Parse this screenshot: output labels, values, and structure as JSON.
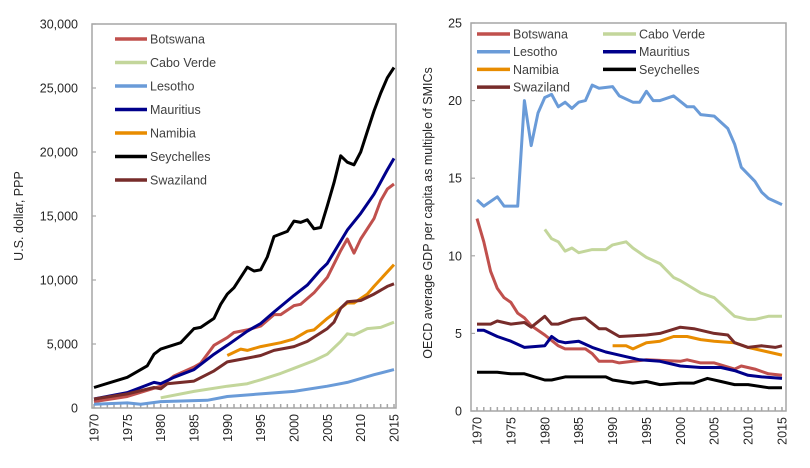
{
  "chart_data": [
    {
      "type": "line",
      "title": "",
      "xlabel": "",
      "ylabel": "U.S. dollar, PPP",
      "xlim": [
        1970,
        2015
      ],
      "ylim": [
        0,
        30000
      ],
      "yticks": [
        0,
        5000,
        10000,
        15000,
        20000,
        25000,
        30000
      ],
      "ytick_labels": [
        "0",
        "5,000",
        "10,000",
        "15,000",
        "20,000",
        "25,000",
        "30,000"
      ],
      "xticks": [
        1970,
        1975,
        1980,
        1985,
        1990,
        1995,
        2000,
        2005,
        2010,
        2015
      ],
      "xtick_labels": [
        "1970",
        "1975",
        "1980",
        "1985",
        "1990",
        "1995",
        "2000",
        "2005",
        "2010",
        "2015"
      ],
      "grid": false,
      "legend": "top-left",
      "series": [
        {
          "name": "Botswana",
          "color": "#c0504d",
          "x": [
            1970,
            1975,
            1980,
            1982,
            1985,
            1986,
            1988,
            1990,
            1991,
            1993,
            1995,
            1997,
            1998,
            2000,
            2001,
            2003,
            2005,
            2007,
            2008,
            2009,
            2010,
            2012,
            2013,
            2014,
            2015
          ],
          "y": [
            500,
            900,
            1700,
            2500,
            3200,
            3500,
            4900,
            5500,
            5900,
            6100,
            6400,
            7300,
            7300,
            8000,
            8100,
            9000,
            10200,
            12300,
            13200,
            12100,
            13200,
            14800,
            16200,
            17100,
            17500
          ]
        },
        {
          "name": "Cabo Verde",
          "color": "#c3d69b",
          "x": [
            1980,
            1985,
            1990,
            1993,
            1995,
            1998,
            2000,
            2003,
            2005,
            2007,
            2008,
            2009,
            2011,
            2013,
            2015
          ],
          "y": [
            800,
            1300,
            1700,
            1900,
            2200,
            2700,
            3100,
            3700,
            4200,
            5200,
            5800,
            5700,
            6200,
            6300,
            6700
          ]
        },
        {
          "name": "Lesotho",
          "color": "#6a9bd8",
          "x": [
            1970,
            1975,
            1977,
            1980,
            1987,
            1990,
            1995,
            2000,
            2005,
            2008,
            2010,
            2012,
            2015
          ],
          "y": [
            300,
            400,
            300,
            500,
            600,
            900,
            1100,
            1300,
            1700,
            2000,
            2300,
            2600,
            3000
          ]
        },
        {
          "name": "Mauritius",
          "color": "#00008b",
          "x": [
            1970,
            1975,
            1979,
            1980,
            1982,
            1985,
            1988,
            1990,
            1993,
            1995,
            1997,
            2000,
            2002,
            2004,
            2005,
            2008,
            2010,
            2012,
            2014,
            2015
          ],
          "y": [
            700,
            1200,
            2000,
            1900,
            2400,
            3000,
            4200,
            4900,
            6000,
            6600,
            7500,
            8800,
            9600,
            10800,
            11300,
            13900,
            15200,
            16700,
            18600,
            19500
          ]
        },
        {
          "name": "Namibia",
          "color": "#e88c00",
          "x": [
            1990,
            1992,
            1993,
            1995,
            1998,
            2000,
            2002,
            2003,
            2005,
            2007,
            2008,
            2009,
            2011,
            2012,
            2015
          ],
          "y": [
            4100,
            4600,
            4500,
            4800,
            5100,
            5400,
            6000,
            6100,
            7000,
            7800,
            8200,
            8200,
            8900,
            9500,
            11200
          ]
        },
        {
          "name": "Seychelles",
          "color": "#000000",
          "x": [
            1970,
            1975,
            1978,
            1979,
            1980,
            1983,
            1985,
            1986,
            1988,
            1989,
            1990,
            1991,
            1993,
            1994,
            1995,
            1996,
            1997,
            1999,
            2000,
            2001,
            2002,
            2003,
            2004,
            2005,
            2006,
            2007,
            2008,
            2009,
            2010,
            2011,
            2012,
            2013,
            2014,
            2015
          ],
          "y": [
            1600,
            2400,
            3300,
            4200,
            4600,
            5100,
            6200,
            6300,
            7000,
            8100,
            8900,
            9400,
            11000,
            10700,
            10800,
            11800,
            13400,
            13800,
            14600,
            14500,
            14700,
            14000,
            14100,
            15800,
            17600,
            19700,
            19200,
            19000,
            20000,
            21600,
            23200,
            24600,
            25800,
            26600
          ]
        },
        {
          "name": "Swaziland",
          "color": "#772c2a",
          "x": [
            1970,
            1975,
            1979,
            1980,
            1981,
            1985,
            1988,
            1990,
            1993,
            1995,
            1997,
            2000,
            2002,
            2005,
            2006,
            2007,
            2008,
            2010,
            2012,
            2014,
            2015
          ],
          "y": [
            700,
            1100,
            1600,
            1500,
            1900,
            2100,
            2900,
            3600,
            3900,
            4100,
            4500,
            4800,
            5200,
            6200,
            6700,
            7800,
            8300,
            8400,
            8900,
            9500,
            9700
          ]
        }
      ]
    },
    {
      "type": "line",
      "title": "",
      "xlabel": "",
      "ylabel": "OECD average GDP per capita as multiple of SMICs",
      "xlim": [
        1970,
        2015
      ],
      "ylim": [
        0,
        25
      ],
      "yticks": [
        0,
        5,
        10,
        15,
        20,
        25
      ],
      "ytick_labels": [
        "0",
        "5",
        "10",
        "15",
        "20",
        "25"
      ],
      "xticks": [
        1970,
        1975,
        1980,
        1985,
        1990,
        1995,
        2000,
        2005,
        2010,
        2015
      ],
      "xtick_labels": [
        "1970",
        "1975",
        "1980",
        "1985",
        "1990",
        "1995",
        "2000",
        "2005",
        "2010",
        "2015"
      ],
      "grid": false,
      "legend": "top",
      "series": [
        {
          "name": "Botswana",
          "color": "#c0504d",
          "x": [
            1970,
            1971,
            1972,
            1973,
            1974,
            1975,
            1976,
            1977,
            1978,
            1980,
            1982,
            1983,
            1986,
            1987,
            1988,
            1990,
            1991,
            1993,
            1995,
            2000,
            2001,
            2003,
            2005,
            2008,
            2009,
            2011,
            2013,
            2015
          ],
          "y": [
            12.4,
            10.9,
            9.0,
            7.9,
            7.3,
            7.0,
            6.3,
            6.0,
            5.5,
            4.9,
            4.2,
            4.0,
            4.0,
            3.7,
            3.2,
            3.2,
            3.1,
            3.2,
            3.3,
            3.2,
            3.3,
            3.1,
            3.1,
            2.7,
            2.9,
            2.7,
            2.4,
            2.3
          ]
        },
        {
          "name": "Cabo Verde",
          "color": "#c3d69b",
          "x": [
            1980,
            1981,
            1982,
            1983,
            1984,
            1985,
            1987,
            1989,
            1990,
            1992,
            1993,
            1995,
            1997,
            1999,
            2000,
            2003,
            2005,
            2007,
            2008,
            2010,
            2011,
            2013,
            2015
          ],
          "y": [
            11.7,
            11.1,
            10.9,
            10.3,
            10.5,
            10.2,
            10.4,
            10.4,
            10.7,
            10.9,
            10.5,
            9.9,
            9.5,
            8.6,
            8.4,
            7.6,
            7.3,
            6.5,
            6.1,
            5.9,
            5.9,
            6.1,
            6.1
          ]
        },
        {
          "name": "Lesotho",
          "color": "#6a9bd8",
          "x": [
            1970,
            1971,
            1973,
            1974,
            1976,
            1977,
            1978,
            1979,
            1980,
            1981,
            1982,
            1983,
            1984,
            1985,
            1986,
            1987,
            1988,
            1990,
            1991,
            1993,
            1994,
            1995,
            1996,
            1997,
            1999,
            2001,
            2002,
            2003,
            2005,
            2007,
            2008,
            2009,
            2011,
            2012,
            2013,
            2015
          ],
          "y": [
            13.6,
            13.2,
            13.8,
            13.2,
            13.2,
            20.0,
            17.1,
            19.2,
            20.2,
            20.4,
            19.6,
            19.9,
            19.5,
            19.9,
            20.0,
            21.0,
            20.8,
            20.9,
            20.3,
            19.9,
            19.9,
            20.6,
            20.0,
            20.0,
            20.3,
            19.6,
            19.6,
            19.1,
            19.0,
            18.2,
            17.2,
            15.7,
            14.8,
            14.1,
            13.7,
            13.3
          ]
        },
        {
          "name": "Mauritius",
          "color": "#00008b",
          "x": [
            1970,
            1971,
            1973,
            1975,
            1977,
            1980,
            1981,
            1982,
            1983,
            1985,
            1987,
            1989,
            1990,
            1992,
            1994,
            1997,
            2000,
            2003,
            2006,
            2008,
            2010,
            2012,
            2015
          ],
          "y": [
            5.2,
            5.2,
            4.8,
            4.5,
            4.1,
            4.2,
            4.8,
            4.5,
            4.4,
            4.5,
            4.1,
            3.8,
            3.7,
            3.5,
            3.3,
            3.2,
            2.9,
            2.8,
            2.8,
            2.6,
            2.3,
            2.2,
            2.1
          ]
        },
        {
          "name": "Namibia",
          "color": "#e88c00",
          "x": [
            1990,
            1992,
            1993,
            1995,
            1997,
            1999,
            2001,
            2003,
            2005,
            2008,
            2010,
            2012,
            2015
          ],
          "y": [
            4.2,
            4.2,
            4.0,
            4.4,
            4.5,
            4.8,
            4.8,
            4.6,
            4.5,
            4.4,
            4.1,
            3.9,
            3.6
          ]
        },
        {
          "name": "Seychelles",
          "color": "#000000",
          "x": [
            1970,
            1973,
            1975,
            1977,
            1980,
            1981,
            1983,
            1987,
            1989,
            1990,
            1993,
            1995,
            1997,
            2000,
            2002,
            2004,
            2006,
            2008,
            2010,
            2013,
            2015
          ],
          "y": [
            2.5,
            2.5,
            2.4,
            2.4,
            2.0,
            2.0,
            2.2,
            2.2,
            2.2,
            2.0,
            1.8,
            1.9,
            1.7,
            1.8,
            1.8,
            2.1,
            1.9,
            1.7,
            1.7,
            1.5,
            1.5
          ]
        },
        {
          "name": "Swaziland",
          "color": "#772c2a",
          "x": [
            1970,
            1972,
            1973,
            1975,
            1977,
            1978,
            1980,
            1981,
            1982,
            1984,
            1986,
            1988,
            1989,
            1991,
            1995,
            1997,
            2000,
            2002,
            2005,
            2007,
            2008,
            2010,
            2012,
            2014,
            2015
          ],
          "y": [
            5.6,
            5.6,
            5.8,
            5.6,
            5.7,
            5.4,
            6.1,
            5.6,
            5.6,
            5.9,
            6.0,
            5.3,
            5.3,
            4.8,
            4.9,
            5.0,
            5.4,
            5.3,
            5.0,
            4.9,
            4.4,
            4.1,
            4.2,
            4.1,
            4.2
          ]
        }
      ]
    }
  ]
}
